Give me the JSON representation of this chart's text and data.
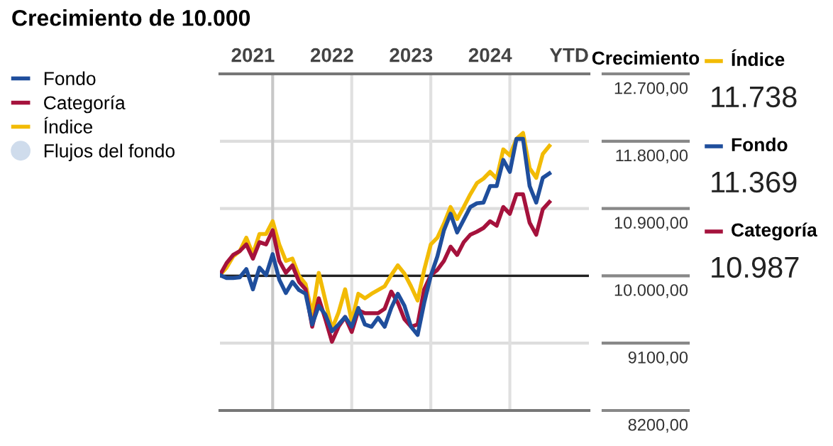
{
  "chart_data": {
    "type": "line",
    "title": "Crecimiento de 10.000",
    "ylabel": "Crecimiento",
    "x": [
      "2021-05",
      "2021-06",
      "2021-07",
      "2021-08",
      "2021-09",
      "2021-10",
      "2021-11",
      "2021-12",
      "2022-01",
      "2022-02",
      "2022-03",
      "2022-04",
      "2022-05",
      "2022-06",
      "2022-07",
      "2022-08",
      "2022-09",
      "2022-10",
      "2022-11",
      "2022-12",
      "2023-01",
      "2023-02",
      "2023-03",
      "2023-04",
      "2023-05",
      "2023-06",
      "2023-07",
      "2023-08",
      "2023-09",
      "2023-10",
      "2023-11",
      "2023-12",
      "2024-01",
      "2024-02",
      "2024-03",
      "2024-04",
      "2024-05",
      "2024-06",
      "2024-07",
      "2024-08",
      "2024-09",
      "2024-10",
      "2024-11",
      "2024-12",
      "2025-01",
      "2025-02",
      "2025-03",
      "2025-04",
      "2025-05",
      "2025-06",
      "2025-07"
    ],
    "series": [
      {
        "name": "Fondo",
        "color": "#1f4e9c",
        "values": [
          10010,
          9970,
          9970,
          9980,
          10090,
          9820,
          10110,
          10010,
          10290,
          9950,
          9770,
          9920,
          9810,
          9760,
          9350,
          9600,
          9480,
          9260,
          9350,
          9450,
          9320,
          9570,
          9350,
          9320,
          9440,
          9320,
          9570,
          9760,
          9600,
          9320,
          9210,
          9640,
          10000,
          10260,
          10610,
          10830,
          10580,
          10750,
          10920,
          10970,
          10980,
          11200,
          11200,
          11550,
          11390,
          11830,
          11830,
          11200,
          10980,
          11310,
          11369
        ]
      },
      {
        "name": "Categoría",
        "color": "#a5123c",
        "values": [
          10010,
          10170,
          10280,
          10330,
          10420,
          10230,
          10450,
          10420,
          10610,
          10200,
          10040,
          10140,
          9920,
          9820,
          9320,
          9700,
          9420,
          9120,
          9320,
          9450,
          9250,
          9540,
          9500,
          9500,
          9500,
          9560,
          9790,
          9640,
          9420,
          9320,
          9350,
          9820,
          10010,
          10080,
          10200,
          10390,
          10280,
          10450,
          10550,
          10590,
          10640,
          10730,
          10670,
          10920,
          10830,
          11090,
          11090,
          10710,
          10550,
          10890,
          10987
        ]
      },
      {
        "name": "Índice",
        "color": "#f2bb05",
        "values": [
          10010,
          10110,
          10260,
          10330,
          10510,
          10290,
          10560,
          10560,
          10730,
          10420,
          10200,
          10230,
          10000,
          9890,
          9480,
          10040,
          9670,
          9290,
          9510,
          9820,
          9390,
          9760,
          9700,
          9760,
          9810,
          9860,
          10010,
          10140,
          10030,
          9860,
          9670,
          10080,
          10420,
          10510,
          10700,
          10920,
          10760,
          10920,
          11090,
          11240,
          11300,
          11390,
          11300,
          11690,
          11610,
          11830,
          11910,
          11440,
          11310,
          11630,
          11738
        ]
      },
      {
        "name": "Flujos del fondo",
        "type": "bar",
        "color": "#cfdcec",
        "values": [
          null,
          null,
          null,
          null,
          null,
          null,
          null,
          null,
          null,
          null,
          null,
          null,
          null,
          null,
          null,
          null,
          null,
          null,
          null,
          null,
          null,
          null,
          null,
          null,
          null,
          null,
          null,
          null,
          null,
          null,
          null,
          null,
          null,
          null,
          null,
          null,
          null,
          null,
          null,
          null,
          null,
          null,
          null,
          null,
          null,
          null,
          null,
          null,
          null,
          null,
          null
        ]
      }
    ],
    "xlim": [
      "2021-05",
      "2026-01"
    ],
    "xticks": [
      {
        "value": "2021-10",
        "label": "2021"
      },
      {
        "value": "2022-10",
        "label": "2022"
      },
      {
        "value": "2023-10",
        "label": "2023"
      },
      {
        "value": "2024-10",
        "label": "2024"
      },
      {
        "value": "2025-10",
        "label": "YTD"
      }
    ],
    "ylim": [
      8200,
      12700
    ],
    "yticks": [
      {
        "value": 12700,
        "label": "12.700,00"
      },
      {
        "value": 11800,
        "label": "11.800,00"
      },
      {
        "value": 10900,
        "label": "10.900,00"
      },
      {
        "value": 10000,
        "label": "10.000,00"
      },
      {
        "value": 9100,
        "label": "9100,00"
      },
      {
        "value": 8200,
        "label": "8200,00"
      }
    ],
    "ref_lines": [
      {
        "axis": "x",
        "value": "2022-01",
        "color": "#c8c8c8"
      },
      {
        "axis": "x",
        "value": "2023-01",
        "color": "#e0e0e0"
      },
      {
        "axis": "x",
        "value": "2024-01",
        "color": "#e0e0e0"
      },
      {
        "axis": "x",
        "value": "2025-01",
        "color": "#e0e0e0"
      },
      {
        "axis": "y",
        "value": 10000,
        "color": "#222222"
      }
    ],
    "annotations": [
      "11.738",
      "11.369",
      "10.987"
    ],
    "grid": "y",
    "legend": "left",
    "marker": "none",
    "line_style": "solid"
  }
}
